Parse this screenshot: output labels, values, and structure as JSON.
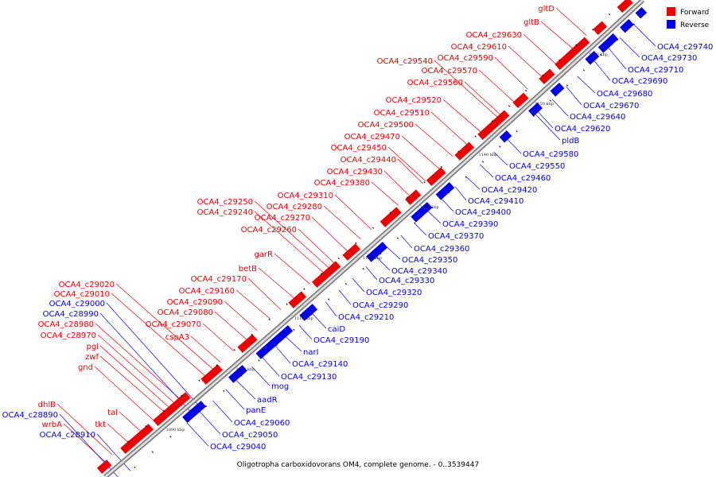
{
  "caption": "Oligotropha carboxidovorans OM4, complete genome. - 0..3539447",
  "legend": [
    {
      "label": "Forward",
      "color": "#ee0000"
    },
    {
      "label": "Reverse",
      "color": "#0000ee"
    }
  ],
  "colors": {
    "forward": "#ee0000",
    "reverse": "#0000ee",
    "backbone": "#999999",
    "tick": "#111111"
  },
  "ticks": [
    "1090 kbp",
    "1100 kbp",
    "1110 kbp",
    "1120 kbp",
    "1130 kbp",
    "1140 kbp",
    "1150 kbp",
    "1160 kbp"
  ],
  "forward_labels": [
    "gltD",
    "gltB",
    "OCA4_c29630",
    "OCA4_c29610",
    "OCA4_c29590",
    "OCA4_c29540",
    "OCA4_c29570",
    "OCA4_c29560",
    "OCA4_c29520",
    "OCA4_c29510",
    "OCA4_c29500",
    "OCA4_c29470",
    "OCA4_c29450",
    "OCA4_c29440",
    "OCA4_c29430",
    "OCA4_c29380",
    "OCA4_c29310",
    "OCA4_c29250",
    "OCA4_c29280",
    "OCA4_c29240",
    "OCA4_c29270",
    "OCA4_c29260",
    "garR",
    "betB",
    "OCA4_c29170",
    "OCA4_c29160",
    "OCA4_c29020",
    "OCA4_c29010",
    "OCA4_c29090",
    "OCA4_c29080",
    "OCA4_c28980",
    "OCA4_c29070",
    "OCA4_c28970",
    "cspA3",
    "pgl",
    "zwf",
    "gnd",
    "dhlB",
    "tal",
    "tkt",
    "wrbA"
  ],
  "reverse_labels": [
    "OCA4_c29740",
    "OCA4_c29730",
    "OCA4_c29710",
    "OCA4_c29690",
    "OCA4_c29680",
    "OCA4_c29670",
    "OCA4_c29640",
    "OCA4_c29620",
    "pldB",
    "OCA4_c29580",
    "OCA4_c29550",
    "OCA4_c29460",
    "OCA4_c29420",
    "OCA4_c29410",
    "OCA4_c29400",
    "OCA4_c29390",
    "OCA4_c29370",
    "OCA4_c29360",
    "OCA4_c29350",
    "OCA4_c29340",
    "OCA4_c29330",
    "OCA4_c29320",
    "OCA4_c29290",
    "OCA4_c29210",
    "caiD",
    "OCA4_c29190",
    "narI",
    "OCA4_c29140",
    "OCA4_c29130",
    "mog",
    "aadR",
    "panE",
    "OCA4_c29060",
    "OCA4_c29050",
    "OCA4_c29040",
    "OCA4_c29000",
    "OCA4_c28990",
    "OCA4_c28890",
    "OCA4_c28910"
  ]
}
